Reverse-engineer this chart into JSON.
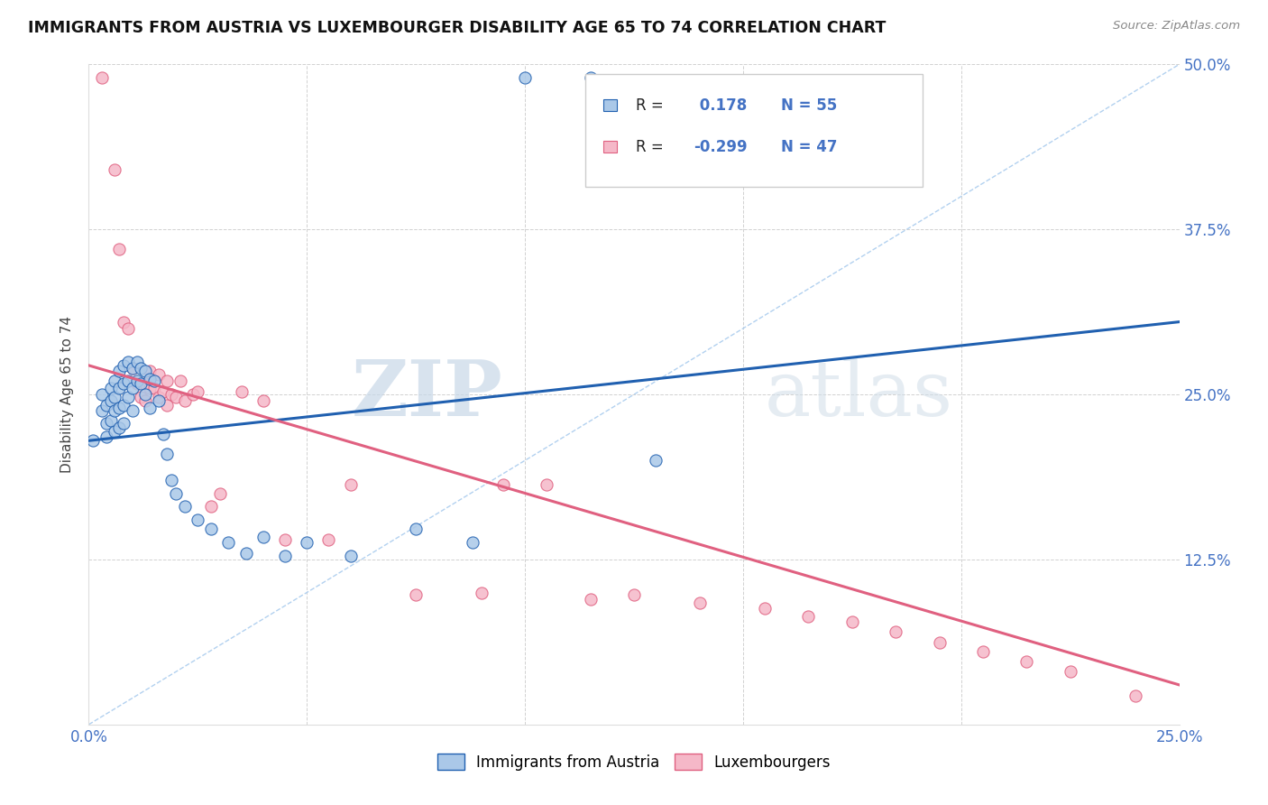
{
  "title": "IMMIGRANTS FROM AUSTRIA VS LUXEMBOURGER DISABILITY AGE 65 TO 74 CORRELATION CHART",
  "source": "Source: ZipAtlas.com",
  "ylabel": "Disability Age 65 to 74",
  "xlim": [
    0.0,
    0.25
  ],
  "ylim": [
    0.0,
    0.5
  ],
  "xticks": [
    0.0,
    0.05,
    0.1,
    0.15,
    0.2,
    0.25
  ],
  "yticks": [
    0.0,
    0.125,
    0.25,
    0.375,
    0.5
  ],
  "xtick_labels": [
    "0.0%",
    "",
    "",
    "",
    "",
    "25.0%"
  ],
  "ytick_labels_right": [
    "",
    "12.5%",
    "25.0%",
    "37.5%",
    "50.0%"
  ],
  "legend_blue_label": "Immigrants from Austria",
  "legend_pink_label": "Luxembourgers",
  "r_blue": 0.178,
  "n_blue": 55,
  "r_pink": -0.299,
  "n_pink": 47,
  "blue_color": "#aac8e8",
  "pink_color": "#f5b8c8",
  "blue_line_color": "#2060b0",
  "pink_line_color": "#e06080",
  "blue_line_x0": 0.0,
  "blue_line_y0": 0.215,
  "blue_line_x1": 0.25,
  "blue_line_y1": 0.305,
  "pink_line_x0": 0.0,
  "pink_line_y0": 0.272,
  "pink_line_x1": 0.25,
  "pink_line_y1": 0.03,
  "watermark_zip": "ZIP",
  "watermark_atlas": "atlas",
  "blue_scatter_x": [
    0.001,
    0.003,
    0.003,
    0.004,
    0.004,
    0.004,
    0.005,
    0.005,
    0.005,
    0.006,
    0.006,
    0.006,
    0.006,
    0.007,
    0.007,
    0.007,
    0.007,
    0.008,
    0.008,
    0.008,
    0.008,
    0.009,
    0.009,
    0.009,
    0.01,
    0.01,
    0.01,
    0.011,
    0.011,
    0.012,
    0.012,
    0.013,
    0.013,
    0.014,
    0.014,
    0.015,
    0.016,
    0.017,
    0.018,
    0.019,
    0.02,
    0.022,
    0.025,
    0.028,
    0.032,
    0.036,
    0.04,
    0.045,
    0.05,
    0.06,
    0.075,
    0.088,
    0.1,
    0.115,
    0.13
  ],
  "blue_scatter_y": [
    0.215,
    0.25,
    0.238,
    0.242,
    0.228,
    0.218,
    0.255,
    0.245,
    0.23,
    0.26,
    0.248,
    0.238,
    0.222,
    0.268,
    0.255,
    0.24,
    0.225,
    0.272,
    0.258,
    0.242,
    0.228,
    0.275,
    0.26,
    0.248,
    0.27,
    0.255,
    0.238,
    0.275,
    0.26,
    0.27,
    0.258,
    0.268,
    0.25,
    0.262,
    0.24,
    0.26,
    0.245,
    0.22,
    0.205,
    0.185,
    0.175,
    0.165,
    0.155,
    0.148,
    0.138,
    0.13,
    0.142,
    0.128,
    0.138,
    0.128,
    0.148,
    0.138,
    0.49,
    0.49,
    0.2
  ],
  "pink_scatter_x": [
    0.003,
    0.006,
    0.007,
    0.008,
    0.009,
    0.01,
    0.011,
    0.012,
    0.013,
    0.013,
    0.014,
    0.014,
    0.015,
    0.016,
    0.016,
    0.017,
    0.018,
    0.018,
    0.019,
    0.02,
    0.021,
    0.022,
    0.024,
    0.025,
    0.028,
    0.03,
    0.035,
    0.04,
    0.045,
    0.055,
    0.06,
    0.075,
    0.09,
    0.095,
    0.105,
    0.115,
    0.125,
    0.14,
    0.155,
    0.165,
    0.175,
    0.185,
    0.195,
    0.205,
    0.215,
    0.225,
    0.24
  ],
  "pink_scatter_y": [
    0.49,
    0.42,
    0.36,
    0.305,
    0.3,
    0.27,
    0.258,
    0.248,
    0.258,
    0.245,
    0.268,
    0.255,
    0.255,
    0.265,
    0.248,
    0.252,
    0.26,
    0.242,
    0.25,
    0.248,
    0.26,
    0.245,
    0.25,
    0.252,
    0.165,
    0.175,
    0.252,
    0.245,
    0.14,
    0.14,
    0.182,
    0.098,
    0.1,
    0.182,
    0.182,
    0.095,
    0.098,
    0.092,
    0.088,
    0.082,
    0.078,
    0.07,
    0.062,
    0.055,
    0.048,
    0.04,
    0.022
  ]
}
